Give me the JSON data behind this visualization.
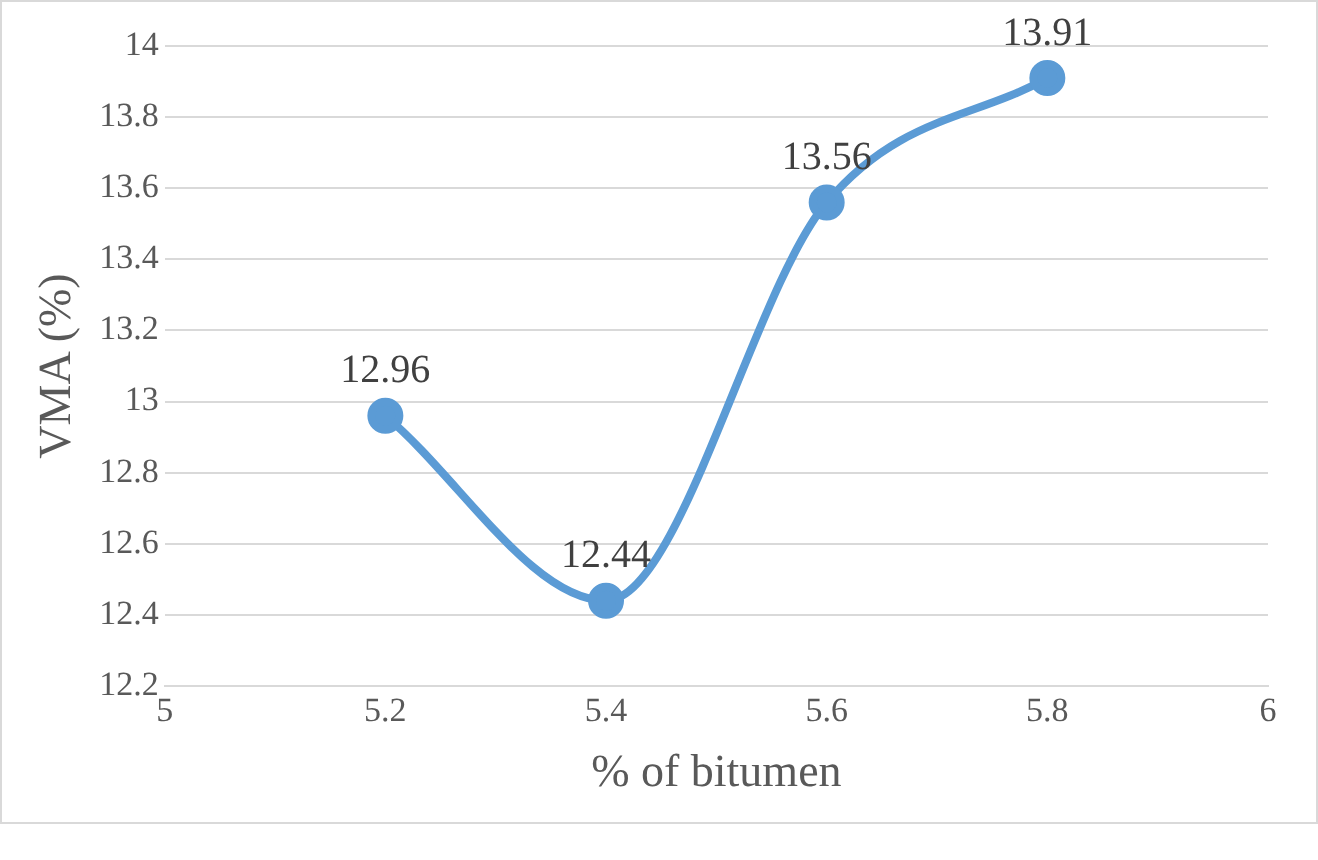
{
  "chart_data": {
    "type": "line",
    "xlabel": "% of bitumen",
    "ylabel": "VMA (%)",
    "x": [
      5.2,
      5.4,
      5.6,
      5.8
    ],
    "series": [
      {
        "color": "#5b9bd5",
        "values": [
          12.96,
          12.44,
          13.56,
          13.91
        ]
      }
    ],
    "xlim": [
      5,
      6
    ],
    "xticks": [
      5,
      5.2,
      5.4,
      5.6,
      5.8,
      6
    ],
    "ylim": [
      12.2,
      14
    ],
    "yticks": [
      12.2,
      12.4,
      12.6,
      12.8,
      13,
      13.2,
      13.4,
      13.6,
      13.8,
      14
    ],
    "grid": "y",
    "marker": "circle",
    "line_style": "solid",
    "data_labels": true,
    "legend": false
  }
}
